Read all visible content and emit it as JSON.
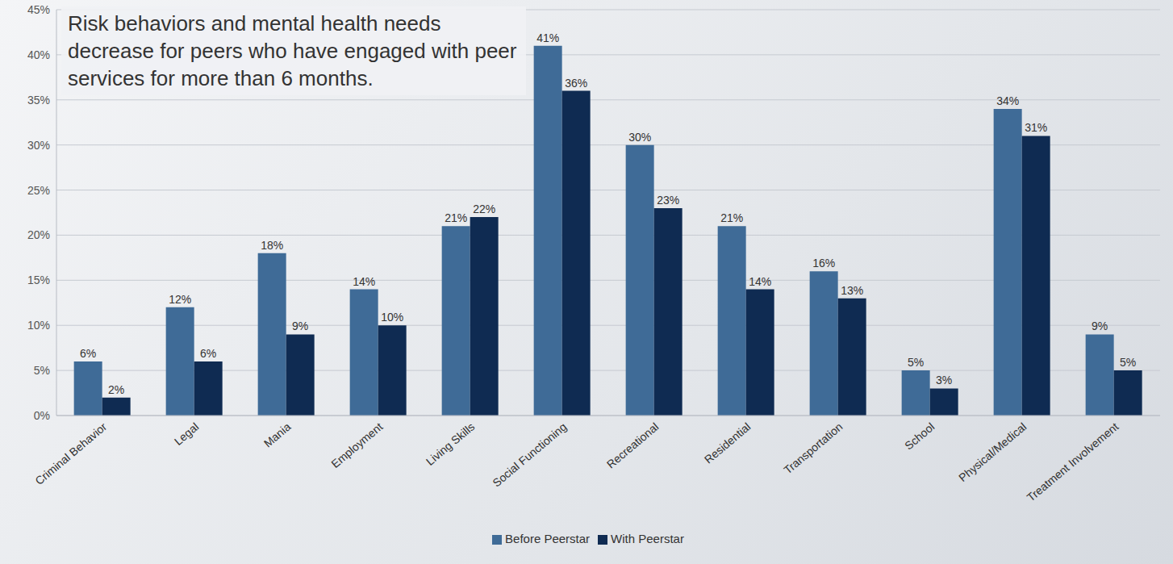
{
  "chart_data": {
    "type": "bar",
    "title": "Risk behaviors and mental health needs decrease for peers who have engaged with peer services for more than 6 months.",
    "categories": [
      "Criminal Behavior",
      "Legal",
      "Mania",
      "Employment",
      "Living Skills",
      "Social Functioning",
      "Recreational",
      "Residential",
      "Transportation",
      "School",
      "Physical/Medical",
      "Treatment Involvement"
    ],
    "series": [
      {
        "name": "Before Peerstar",
        "color": "#3f6b97",
        "values": [
          6,
          12,
          18,
          14,
          21,
          41,
          30,
          21,
          16,
          5,
          34,
          9
        ],
        "value_labels": [
          "6%",
          "12%",
          "18%",
          "14%",
          "21%",
          "41%",
          "30%",
          "21%",
          "16%",
          "5%",
          "34%",
          "9%"
        ]
      },
      {
        "name": "With Peerstar",
        "color": "#0f2b52",
        "values": [
          2,
          6,
          9,
          10,
          22,
          36,
          23,
          14,
          13,
          3,
          31,
          5
        ],
        "value_labels": [
          "2%",
          "6%",
          "9%",
          "10%",
          "22%",
          "36%",
          "23%",
          "14%",
          "13%",
          "3%",
          "31%",
          "5%"
        ]
      }
    ],
    "ylim": [
      0,
      45
    ],
    "yticks": [
      {
        "value": 0,
        "label": "0%"
      },
      {
        "value": 5,
        "label": "5%"
      },
      {
        "value": 10,
        "label": "10%"
      },
      {
        "value": 15,
        "label": "15%"
      },
      {
        "value": 20,
        "label": "20%"
      },
      {
        "value": 25,
        "label": "25%"
      },
      {
        "value": 30,
        "label": "30%"
      },
      {
        "value": 35,
        "label": "35%"
      },
      {
        "value": 40,
        "label": "40%"
      },
      {
        "value": 45,
        "label": "45%"
      }
    ],
    "grid": true,
    "data_labels": true,
    "legend": "bottom"
  }
}
